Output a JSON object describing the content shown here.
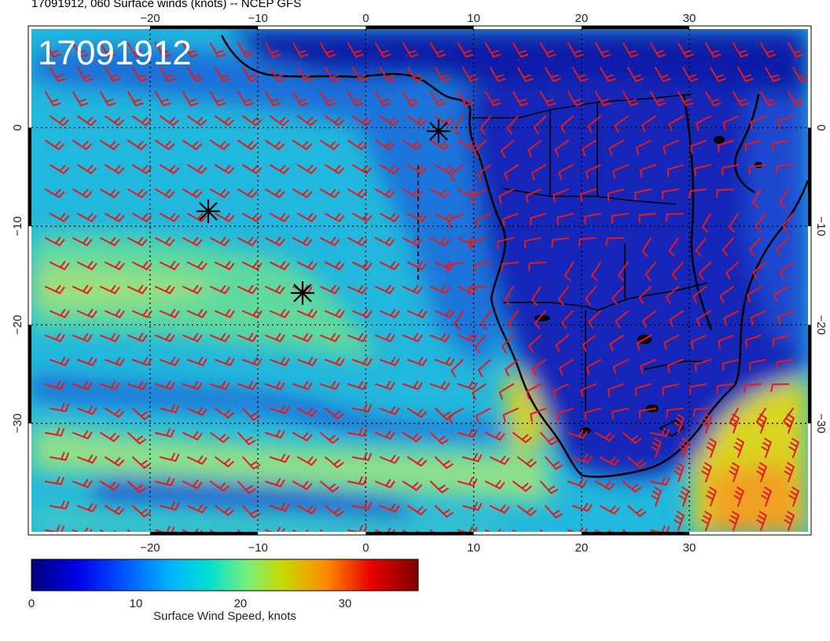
{
  "title": "17091912, 060 Surface winds (knots) -- NCEP GFS",
  "stamp": "17091912",
  "map": {
    "lon_range": [
      -31,
      41
    ],
    "lat_range": [
      -41,
      10
    ],
    "lon_ticks": [
      "−20",
      "−10",
      "0",
      "10",
      "20",
      "30"
    ],
    "lat_ticks_left": [
      "0",
      "−10",
      "−20",
      "−30"
    ],
    "lat_ticks_right": [
      "0",
      "−10",
      "−20",
      "−30"
    ],
    "graticule": "dotted",
    "barb_color": "#e41a1c",
    "land_outline_color": "#000000"
  },
  "markers": [
    "storm-marker",
    "storm-marker",
    "storm-marker"
  ],
  "colorbar": {
    "label": "Surface Wind Speed, knots",
    "ticks": [
      "0",
      "10",
      "20",
      "30"
    ],
    "range": [
      0,
      37
    ],
    "colors": [
      "#00007f",
      "#0000e6",
      "#0055ff",
      "#00b4ff",
      "#00e0d0",
      "#7cef7a",
      "#c8d800",
      "#ff8c00",
      "#e60000",
      "#7f0000"
    ]
  }
}
